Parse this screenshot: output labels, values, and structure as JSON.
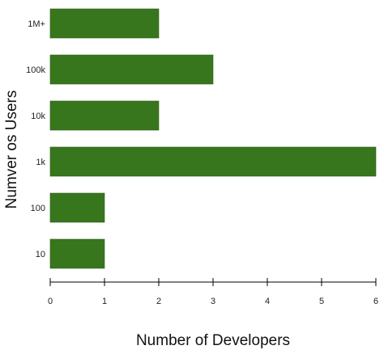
{
  "chart_data": {
    "type": "bar",
    "orientation": "horizontal",
    "categories": [
      "1M+",
      "100k",
      "10k",
      "1k",
      "100",
      "10"
    ],
    "values": [
      2,
      3,
      2,
      6,
      1,
      1
    ],
    "xlabel": "Number of Developers",
    "ylabel": "Numver os Users",
    "xlim": [
      0,
      6
    ],
    "xticks": [
      "0",
      "1",
      "2",
      "3",
      "4",
      "5",
      "6"
    ],
    "grid": false,
    "legend": "none",
    "bar_color": "#38761d",
    "bar_edge_color": "#2a5a15"
  }
}
